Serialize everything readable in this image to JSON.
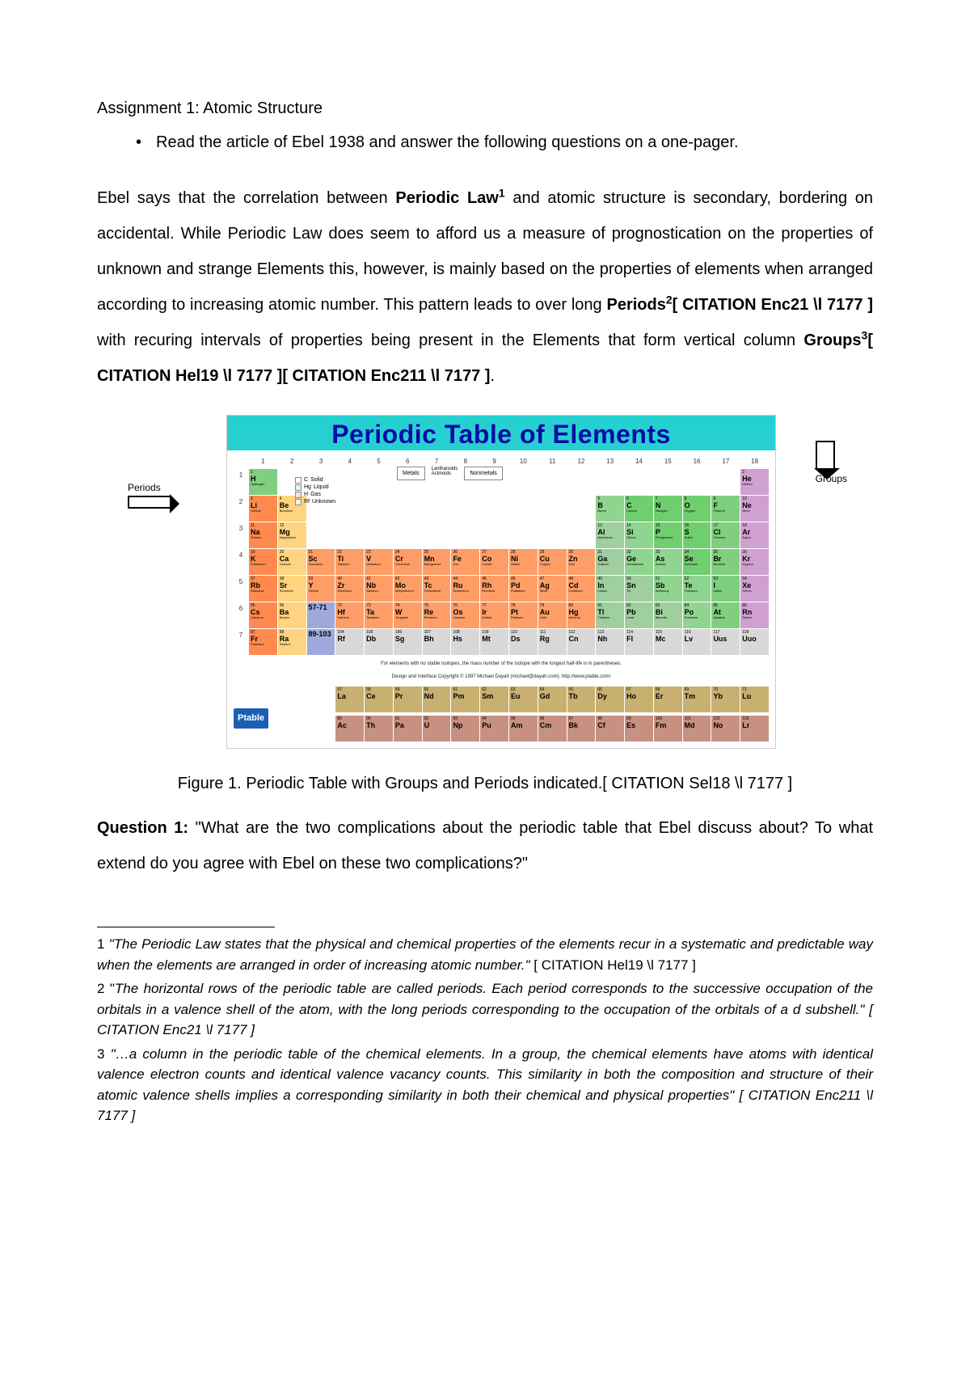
{
  "title": "Assignment 1: Atomic Structure",
  "bullet": "Read the article of Ebel 1938 and answer the following questions on a one-pager.",
  "para": {
    "t1": "Ebel says that the correlation between ",
    "b1": "Periodic Law",
    "s1": "1",
    "t2": " and atomic structure is secondary, bordering on accidental.  While Periodic Law does seem to afford us a measure of prognostication on the properties of unknown and strange Elements this, however, is mainly based on the properties of elements when arranged according to increasing atomic number.  This pattern leads to over long ",
    "b2": "Periods",
    "s2": "2",
    "b2b": "[ CITATION Enc21 \\l 7177 ]",
    "t3": " with recuring intervals of properties being present in the Elements that form vertical column ",
    "b3": "Groups",
    "s3": "3",
    "b3b": "[ CITATION Hel19 \\l 7177 ][ CITATION Enc211 \\l 7177 ]",
    "t4": "."
  },
  "figure": {
    "title": "Periodic Table of Elements",
    "periods_label": "Periods",
    "groups_label": "Groups",
    "group_nums": [
      "1",
      "2",
      "3",
      "4",
      "5",
      "6",
      "7",
      "8",
      "9",
      "10",
      "11",
      "12",
      "13",
      "14",
      "15",
      "16",
      "17",
      "18"
    ],
    "period_nums": [
      "1",
      "2",
      "3",
      "4",
      "5",
      "6",
      "7"
    ],
    "legend": {
      "solid": "Solid",
      "liquid": "Liquid",
      "gas": "Gas",
      "unknown": "Unknown",
      "c": "C",
      "hg": "Hg",
      "h": "H",
      "rf": "Rf"
    },
    "cat": {
      "metals": "Metals",
      "lanth": "Lanthanoids",
      "act": "Actinoids",
      "nonmetals": "Nonmetals"
    },
    "note": "For elements with no stable isotopes, the mass number of the isotope with the longest half-life is in parentheses.",
    "credit": "Design and Interface Copyright © 1997 Michael Dayah (michael@dayah.com). http://www.ptable.com/",
    "logo": "Ptable",
    "colors": {
      "alkali": "#ff8a50",
      "alkearth": "#ffd480",
      "tm": "#ff9d66",
      "posttm": "#9fcf9f",
      "metalloid": "#8fd48f",
      "nonmetal": "#6fcf6f",
      "halogen": "#7fcf7f",
      "noble": "#d0a0d0",
      "lan": "#c8b070",
      "act": "#c89080",
      "lanblock": "#9fa8da",
      "hydrogen": "#7fcf7f",
      "unknown": "#d8d8d8",
      "title_bg": "#26d0d0",
      "title_fg": "#0a0aa8"
    },
    "rows": [
      [
        {
          "n": "1",
          "s": "H",
          "nm": "Hydrogen",
          "c": "hydrogen"
        },
        null,
        null,
        null,
        null,
        null,
        null,
        null,
        null,
        null,
        null,
        null,
        null,
        null,
        null,
        null,
        null,
        {
          "n": "2",
          "s": "He",
          "nm": "Helium",
          "c": "noble"
        }
      ],
      [
        {
          "n": "3",
          "s": "Li",
          "nm": "Lithium",
          "c": "alkali"
        },
        {
          "n": "4",
          "s": "Be",
          "nm": "Beryllium",
          "c": "alkearth"
        },
        null,
        null,
        null,
        null,
        null,
        null,
        null,
        null,
        null,
        null,
        {
          "n": "5",
          "s": "B",
          "nm": "Boron",
          "c": "metalloid"
        },
        {
          "n": "6",
          "s": "C",
          "nm": "Carbon",
          "c": "nonmetal"
        },
        {
          "n": "7",
          "s": "N",
          "nm": "Nitrogen",
          "c": "nonmetal"
        },
        {
          "n": "8",
          "s": "O",
          "nm": "Oxygen",
          "c": "nonmetal"
        },
        {
          "n": "9",
          "s": "F",
          "nm": "Fluorine",
          "c": "halogen"
        },
        {
          "n": "10",
          "s": "Ne",
          "nm": "Neon",
          "c": "noble"
        }
      ],
      [
        {
          "n": "11",
          "s": "Na",
          "nm": "Sodium",
          "c": "alkali"
        },
        {
          "n": "12",
          "s": "Mg",
          "nm": "Magnesium",
          "c": "alkearth"
        },
        null,
        null,
        null,
        null,
        null,
        null,
        null,
        null,
        null,
        null,
        {
          "n": "13",
          "s": "Al",
          "nm": "Aluminium",
          "c": "posttm"
        },
        {
          "n": "14",
          "s": "Si",
          "nm": "Silicon",
          "c": "metalloid"
        },
        {
          "n": "15",
          "s": "P",
          "nm": "Phosphorus",
          "c": "nonmetal"
        },
        {
          "n": "16",
          "s": "S",
          "nm": "Sulfur",
          "c": "nonmetal"
        },
        {
          "n": "17",
          "s": "Cl",
          "nm": "Chlorine",
          "c": "halogen"
        },
        {
          "n": "18",
          "s": "Ar",
          "nm": "Argon",
          "c": "noble"
        }
      ],
      [
        {
          "n": "19",
          "s": "K",
          "nm": "Potassium",
          "c": "alkali"
        },
        {
          "n": "20",
          "s": "Ca",
          "nm": "Calcium",
          "c": "alkearth"
        },
        {
          "n": "21",
          "s": "Sc",
          "nm": "Scandium",
          "c": "tm"
        },
        {
          "n": "22",
          "s": "Ti",
          "nm": "Titanium",
          "c": "tm"
        },
        {
          "n": "23",
          "s": "V",
          "nm": "Vanadium",
          "c": "tm"
        },
        {
          "n": "24",
          "s": "Cr",
          "nm": "Chromium",
          "c": "tm"
        },
        {
          "n": "25",
          "s": "Mn",
          "nm": "Manganese",
          "c": "tm"
        },
        {
          "n": "26",
          "s": "Fe",
          "nm": "Iron",
          "c": "tm"
        },
        {
          "n": "27",
          "s": "Co",
          "nm": "Cobalt",
          "c": "tm"
        },
        {
          "n": "28",
          "s": "Ni",
          "nm": "Nickel",
          "c": "tm"
        },
        {
          "n": "29",
          "s": "Cu",
          "nm": "Copper",
          "c": "tm"
        },
        {
          "n": "30",
          "s": "Zn",
          "nm": "Zinc",
          "c": "tm"
        },
        {
          "n": "31",
          "s": "Ga",
          "nm": "Gallium",
          "c": "posttm"
        },
        {
          "n": "32",
          "s": "Ge",
          "nm": "Germanium",
          "c": "metalloid"
        },
        {
          "n": "33",
          "s": "As",
          "nm": "Arsenic",
          "c": "metalloid"
        },
        {
          "n": "34",
          "s": "Se",
          "nm": "Selenium",
          "c": "nonmetal"
        },
        {
          "n": "35",
          "s": "Br",
          "nm": "Bromine",
          "c": "halogen"
        },
        {
          "n": "36",
          "s": "Kr",
          "nm": "Krypton",
          "c": "noble"
        }
      ],
      [
        {
          "n": "37",
          "s": "Rb",
          "nm": "Rubidium",
          "c": "alkali"
        },
        {
          "n": "38",
          "s": "Sr",
          "nm": "Strontium",
          "c": "alkearth"
        },
        {
          "n": "39",
          "s": "Y",
          "nm": "Yttrium",
          "c": "tm"
        },
        {
          "n": "40",
          "s": "Zr",
          "nm": "Zirconium",
          "c": "tm"
        },
        {
          "n": "41",
          "s": "Nb",
          "nm": "Niobium",
          "c": "tm"
        },
        {
          "n": "42",
          "s": "Mo",
          "nm": "Molybdenum",
          "c": "tm"
        },
        {
          "n": "43",
          "s": "Tc",
          "nm": "Technetium",
          "c": "tm"
        },
        {
          "n": "44",
          "s": "Ru",
          "nm": "Ruthenium",
          "c": "tm"
        },
        {
          "n": "45",
          "s": "Rh",
          "nm": "Rhodium",
          "c": "tm"
        },
        {
          "n": "46",
          "s": "Pd",
          "nm": "Palladium",
          "c": "tm"
        },
        {
          "n": "47",
          "s": "Ag",
          "nm": "Silver",
          "c": "tm"
        },
        {
          "n": "48",
          "s": "Cd",
          "nm": "Cadmium",
          "c": "tm"
        },
        {
          "n": "49",
          "s": "In",
          "nm": "Indium",
          "c": "posttm"
        },
        {
          "n": "50",
          "s": "Sn",
          "nm": "Tin",
          "c": "posttm"
        },
        {
          "n": "51",
          "s": "Sb",
          "nm": "Antimony",
          "c": "metalloid"
        },
        {
          "n": "52",
          "s": "Te",
          "nm": "Tellurium",
          "c": "metalloid"
        },
        {
          "n": "53",
          "s": "I",
          "nm": "Iodine",
          "c": "halogen"
        },
        {
          "n": "54",
          "s": "Xe",
          "nm": "Xenon",
          "c": "noble"
        }
      ],
      [
        {
          "n": "55",
          "s": "Cs",
          "nm": "Caesium",
          "c": "alkali"
        },
        {
          "n": "56",
          "s": "Ba",
          "nm": "Barium",
          "c": "alkearth"
        },
        {
          "n": "",
          "s": "57-71",
          "nm": "",
          "c": "lanblock"
        },
        {
          "n": "72",
          "s": "Hf",
          "nm": "Hafnium",
          "c": "tm"
        },
        {
          "n": "73",
          "s": "Ta",
          "nm": "Tantalum",
          "c": "tm"
        },
        {
          "n": "74",
          "s": "W",
          "nm": "Tungsten",
          "c": "tm"
        },
        {
          "n": "75",
          "s": "Re",
          "nm": "Rhenium",
          "c": "tm"
        },
        {
          "n": "76",
          "s": "Os",
          "nm": "Osmium",
          "c": "tm"
        },
        {
          "n": "77",
          "s": "Ir",
          "nm": "Iridium",
          "c": "tm"
        },
        {
          "n": "78",
          "s": "Pt",
          "nm": "Platinum",
          "c": "tm"
        },
        {
          "n": "79",
          "s": "Au",
          "nm": "Gold",
          "c": "tm"
        },
        {
          "n": "80",
          "s": "Hg",
          "nm": "Mercury",
          "c": "tm"
        },
        {
          "n": "81",
          "s": "Tl",
          "nm": "Thallium",
          "c": "posttm"
        },
        {
          "n": "82",
          "s": "Pb",
          "nm": "Lead",
          "c": "posttm"
        },
        {
          "n": "83",
          "s": "Bi",
          "nm": "Bismuth",
          "c": "posttm"
        },
        {
          "n": "84",
          "s": "Po",
          "nm": "Polonium",
          "c": "metalloid"
        },
        {
          "n": "85",
          "s": "At",
          "nm": "Astatine",
          "c": "halogen"
        },
        {
          "n": "86",
          "s": "Rn",
          "nm": "Radon",
          "c": "noble"
        }
      ],
      [
        {
          "n": "87",
          "s": "Fr",
          "nm": "Francium",
          "c": "alkali"
        },
        {
          "n": "88",
          "s": "Ra",
          "nm": "Radium",
          "c": "alkearth"
        },
        {
          "n": "",
          "s": "89-103",
          "nm": "",
          "c": "lanblock"
        },
        {
          "n": "104",
          "s": "Rf",
          "nm": "",
          "c": "unknown"
        },
        {
          "n": "105",
          "s": "Db",
          "nm": "",
          "c": "unknown"
        },
        {
          "n": "106",
          "s": "Sg",
          "nm": "",
          "c": "unknown"
        },
        {
          "n": "107",
          "s": "Bh",
          "nm": "",
          "c": "unknown"
        },
        {
          "n": "108",
          "s": "Hs",
          "nm": "",
          "c": "unknown"
        },
        {
          "n": "109",
          "s": "Mt",
          "nm": "",
          "c": "unknown"
        },
        {
          "n": "110",
          "s": "Ds",
          "nm": "",
          "c": "unknown"
        },
        {
          "n": "111",
          "s": "Rg",
          "nm": "",
          "c": "unknown"
        },
        {
          "n": "112",
          "s": "Cn",
          "nm": "",
          "c": "unknown"
        },
        {
          "n": "113",
          "s": "Nh",
          "nm": "",
          "c": "unknown"
        },
        {
          "n": "114",
          "s": "Fl",
          "nm": "",
          "c": "unknown"
        },
        {
          "n": "115",
          "s": "Mc",
          "nm": "",
          "c": "unknown"
        },
        {
          "n": "116",
          "s": "Lv",
          "nm": "",
          "c": "unknown"
        },
        {
          "n": "117",
          "s": "Uus",
          "nm": "",
          "c": "unknown"
        },
        {
          "n": "118",
          "s": "Uuo",
          "nm": "",
          "c": "unknown"
        }
      ]
    ],
    "lan": [
      {
        "n": "57",
        "s": "La",
        "c": "lan"
      },
      {
        "n": "58",
        "s": "Ce",
        "c": "lan"
      },
      {
        "n": "59",
        "s": "Pr",
        "c": "lan"
      },
      {
        "n": "60",
        "s": "Nd",
        "c": "lan"
      },
      {
        "n": "61",
        "s": "Pm",
        "c": "lan"
      },
      {
        "n": "62",
        "s": "Sm",
        "c": "lan"
      },
      {
        "n": "63",
        "s": "Eu",
        "c": "lan"
      },
      {
        "n": "64",
        "s": "Gd",
        "c": "lan"
      },
      {
        "n": "65",
        "s": "Tb",
        "c": "lan"
      },
      {
        "n": "66",
        "s": "Dy",
        "c": "lan"
      },
      {
        "n": "67",
        "s": "Ho",
        "c": "lan"
      },
      {
        "n": "68",
        "s": "Er",
        "c": "lan"
      },
      {
        "n": "69",
        "s": "Tm",
        "c": "lan"
      },
      {
        "n": "70",
        "s": "Yb",
        "c": "lan"
      },
      {
        "n": "71",
        "s": "Lu",
        "c": "lan"
      }
    ],
    "act": [
      {
        "n": "89",
        "s": "Ac",
        "c": "act"
      },
      {
        "n": "90",
        "s": "Th",
        "c": "act"
      },
      {
        "n": "91",
        "s": "Pa",
        "c": "act"
      },
      {
        "n": "92",
        "s": "U",
        "c": "act"
      },
      {
        "n": "93",
        "s": "Np",
        "c": "act"
      },
      {
        "n": "94",
        "s": "Pu",
        "c": "act"
      },
      {
        "n": "95",
        "s": "Am",
        "c": "act"
      },
      {
        "n": "96",
        "s": "Cm",
        "c": "act"
      },
      {
        "n": "97",
        "s": "Bk",
        "c": "act"
      },
      {
        "n": "98",
        "s": "Cf",
        "c": "act"
      },
      {
        "n": "99",
        "s": "Es",
        "c": "act"
      },
      {
        "n": "100",
        "s": "Fm",
        "c": "act"
      },
      {
        "n": "101",
        "s": "Md",
        "c": "act"
      },
      {
        "n": "102",
        "s": "No",
        "c": "act"
      },
      {
        "n": "103",
        "s": "Lr",
        "c": "act"
      }
    ]
  },
  "caption": "Figure 1. Periodic Table with Groups and Periods indicated.[ CITATION Sel18 \\l 7177 ]",
  "question": {
    "label": "Question 1:",
    "text": "  \"What are the two complications about the periodic table that Ebel discuss about? To what extend do you agree with Ebel on these two complications?\""
  },
  "footnotes": {
    "f1": {
      "n": "1",
      "q": "\"The Periodic Law states that the physical and chemical properties of the elements recur in a systematic and predictable way when the elements are arranged in order of increasing atomic number.\"",
      "c": "  [ CITATION Hel19 \\l 7177 ]"
    },
    "f2": {
      "n": "2",
      "pre": " \"",
      "q": "The horizontal rows of the periodic table are called periods. Each period corresponds to the successive occupation of the orbitals in a valence shell of the atom, with the long periods corresponding to the occupation of the orbitals of a d subshell.\"  [ CITATION Enc21 \\l 7177 ]"
    },
    "f3": {
      "n": "3",
      "q": " \"…a column in the periodic table of the chemical elements. In a group, the chemical elements have atoms with identical valence electron counts and identical valence vacancy counts. This similarity in both the composition and structure of their atomic valence shells implies a corresponding similarity in both their chemical and physical properties\"  [ CITATION Enc211 \\l 7177 ]"
    }
  }
}
